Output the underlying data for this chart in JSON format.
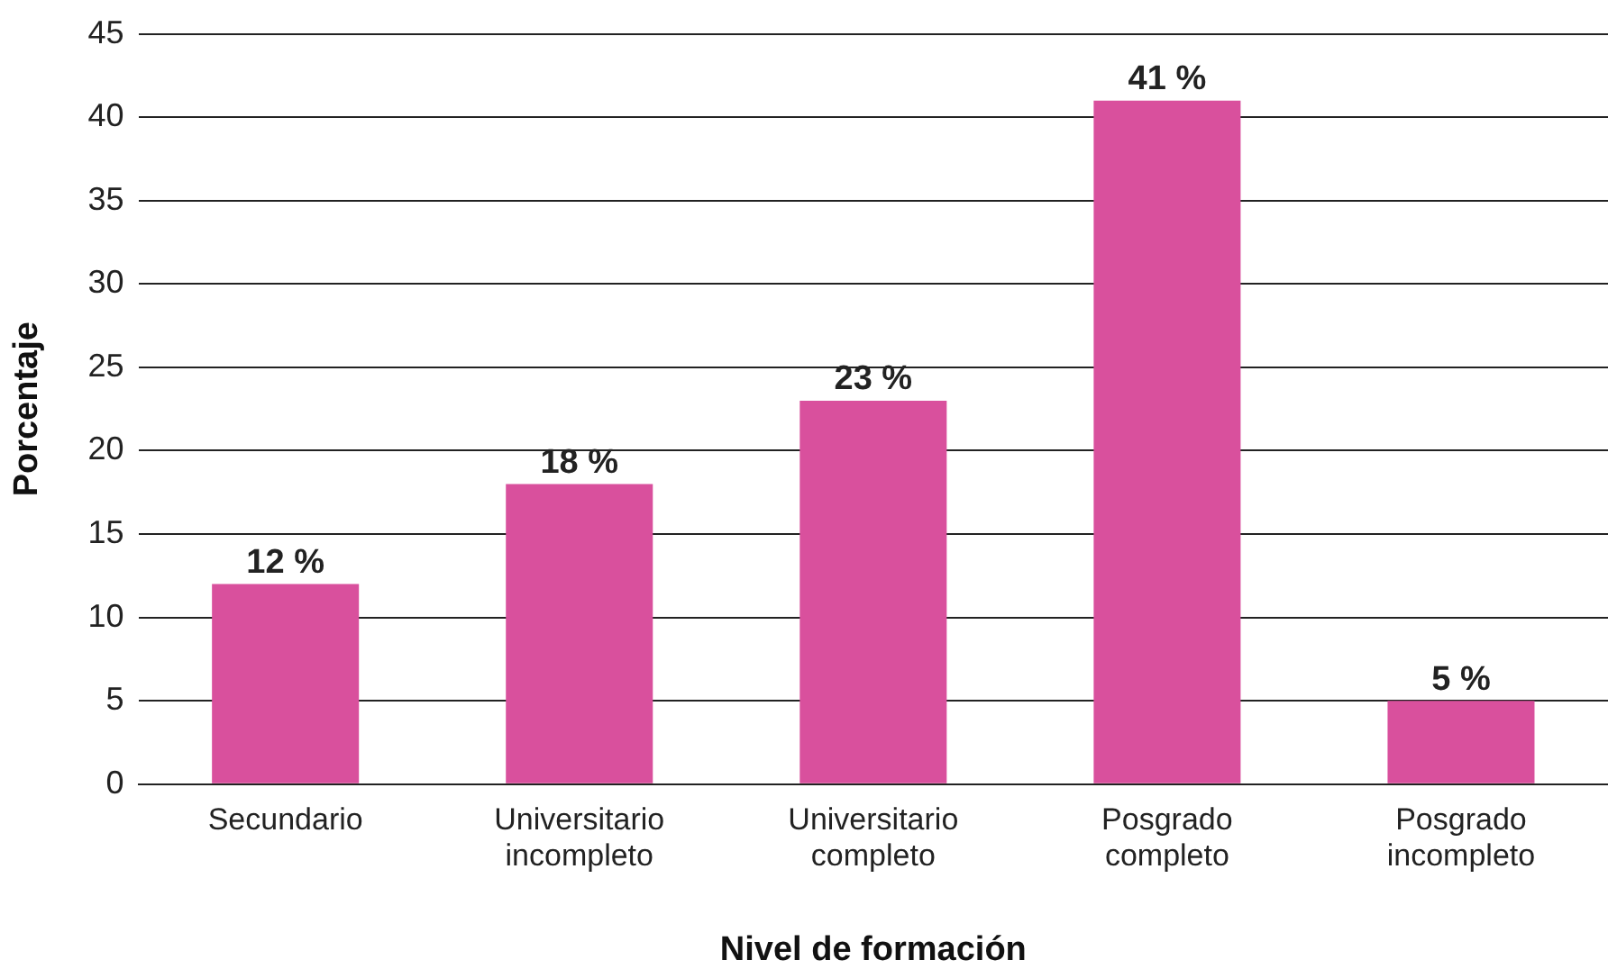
{
  "chart_data": {
    "type": "bar",
    "xlabel": "Nivel de formación",
    "ylabel": "Porcentaje",
    "categories": [
      "Secundario",
      "Universitario incompleto",
      "Universitario completo",
      "Posgrado completo",
      "Posgrado incompleto"
    ],
    "values": [
      12,
      18,
      23,
      41,
      5
    ],
    "value_labels": [
      "12 %",
      "18 %",
      "23 %",
      "41 %",
      "5 %"
    ],
    "color": "#d9509d",
    "ylim": [
      0,
      45
    ],
    "yticks": [
      0,
      5,
      10,
      15,
      20,
      25,
      30,
      35,
      40,
      45
    ],
    "grid": "y",
    "legend": false
  }
}
